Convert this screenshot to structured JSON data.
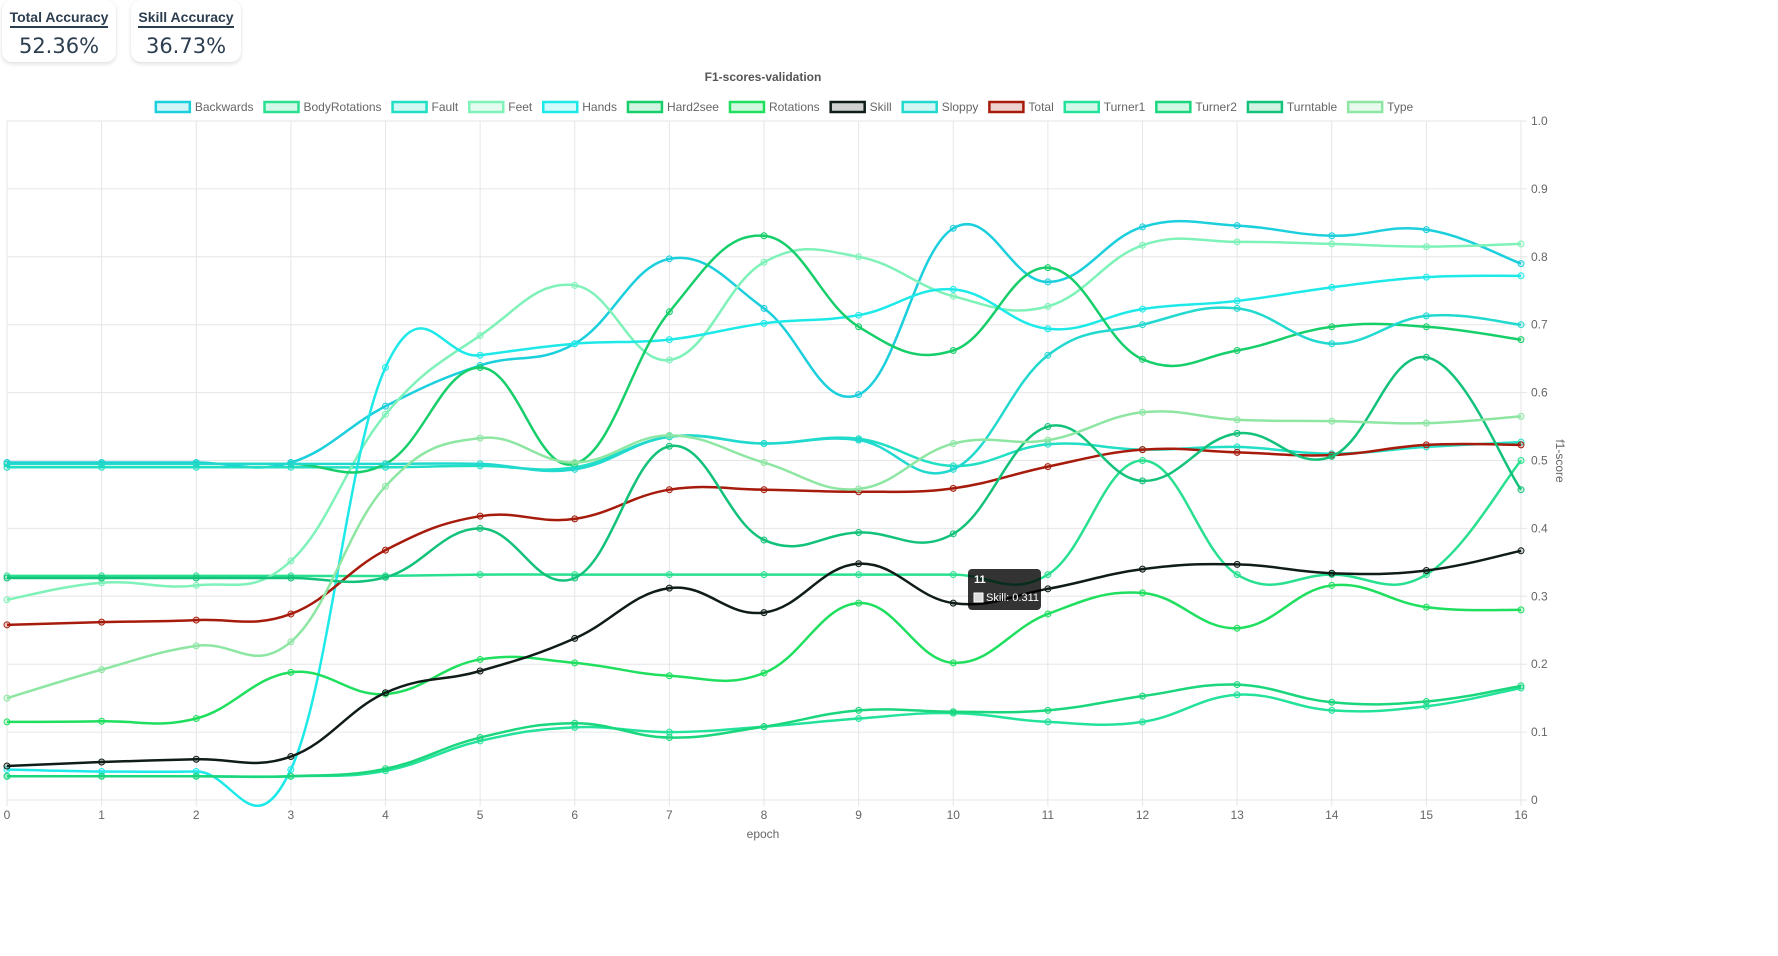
{
  "cards": {
    "total": {
      "label": "Total Accuracy",
      "value": "52.36%"
    },
    "skill": {
      "label": "Skill Accuracy",
      "value": "36.73%"
    }
  },
  "tooltip": {
    "title": "11",
    "series": "Skill",
    "value": "0.311"
  },
  "chart_data": {
    "type": "line",
    "title": "F1-scores-validation",
    "xlabel": "epoch",
    "ylabel": "f1-score",
    "x": [
      0,
      1,
      2,
      3,
      4,
      5,
      6,
      7,
      8,
      9,
      10,
      11,
      12,
      13,
      14,
      15,
      16
    ],
    "xlim": [
      0,
      16
    ],
    "ylim": [
      0,
      1.0
    ],
    "yticks": [
      "0",
      "0.1",
      "0.2",
      "0.3",
      "0.4",
      "0.5",
      "0.6",
      "0.7",
      "0.8",
      "0.9",
      "1.0"
    ],
    "grid": true,
    "legend_position": "top",
    "series": [
      {
        "name": "Backwards",
        "color": "#1ccfdc",
        "values": [
          0.497,
          0.497,
          0.497,
          0.497,
          0.58,
          0.64,
          0.672,
          0.797,
          0.724,
          0.597,
          0.842,
          0.763,
          0.844,
          0.846,
          0.831,
          0.84,
          0.79
        ]
      },
      {
        "name": "BodyRotations",
        "color": "#28e08f",
        "values": [
          0.33,
          0.33,
          0.33,
          0.33,
          0.33,
          0.332,
          0.332,
          0.332,
          0.332,
          0.332,
          0.332,
          0.332,
          0.5,
          0.332,
          0.332,
          0.332,
          0.5
        ]
      },
      {
        "name": "Fault",
        "color": "#20dfc4",
        "values": [
          0.49,
          0.49,
          0.49,
          0.49,
          0.49,
          0.492,
          0.49,
          0.535,
          0.525,
          0.532,
          0.492,
          0.524,
          0.516,
          0.52,
          0.51,
          0.52,
          0.527
        ]
      },
      {
        "name": "Feet",
        "color": "#7ef2b8",
        "values": [
          0.295,
          0.32,
          0.316,
          0.352,
          0.568,
          0.684,
          0.758,
          0.648,
          0.792,
          0.8,
          0.742,
          0.727,
          0.817,
          0.822,
          0.819,
          0.815,
          0.819
        ]
      },
      {
        "name": "Hands",
        "color": "#1ee9e9",
        "values": [
          0.045,
          0.042,
          0.042,
          0.045,
          0.637,
          0.655,
          0.672,
          0.678,
          0.702,
          0.714,
          0.752,
          0.694,
          0.723,
          0.735,
          0.755,
          0.77,
          0.772
        ]
      },
      {
        "name": "Hard2see",
        "color": "#17cf6a",
        "values": [
          0.495,
          0.495,
          0.495,
          0.495,
          0.495,
          0.637,
          0.495,
          0.719,
          0.831,
          0.697,
          0.662,
          0.784,
          0.649,
          0.662,
          0.697,
          0.697,
          0.678
        ]
      },
      {
        "name": "Rotations",
        "color": "#1fdf5e",
        "values": [
          0.115,
          0.116,
          0.12,
          0.188,
          0.156,
          0.207,
          0.202,
          0.183,
          0.187,
          0.29,
          0.202,
          0.274,
          0.305,
          0.253,
          0.316,
          0.284,
          0.28
        ]
      },
      {
        "name": "Skill",
        "color": "#0f1c17",
        "values": [
          0.05,
          0.056,
          0.06,
          0.064,
          0.158,
          0.19,
          0.238,
          0.312,
          0.276,
          0.348,
          0.29,
          0.311,
          0.34,
          0.347,
          0.334,
          0.338,
          0.367
        ]
      },
      {
        "name": "Sloppy",
        "color": "#22d9cf",
        "values": [
          0.495,
          0.495,
          0.495,
          0.495,
          0.495,
          0.495,
          0.487,
          0.535,
          0.525,
          0.53,
          0.487,
          0.655,
          0.7,
          0.724,
          0.672,
          0.713,
          0.7
        ]
      },
      {
        "name": "Total",
        "color": "#a71b0c",
        "values": [
          0.258,
          0.262,
          0.265,
          0.274,
          0.368,
          0.418,
          0.414,
          0.457,
          0.457,
          0.454,
          0.459,
          0.491,
          0.516,
          0.512,
          0.508,
          0.523,
          0.523
        ]
      },
      {
        "name": "Turner1",
        "color": "#23e29a",
        "values": [
          0.035,
          0.035,
          0.035,
          0.035,
          0.043,
          0.087,
          0.107,
          0.1,
          0.108,
          0.12,
          0.128,
          0.115,
          0.115,
          0.155,
          0.132,
          0.138,
          0.165
        ]
      },
      {
        "name": "Turner2",
        "color": "#1ad67c",
        "values": [
          0.035,
          0.035,
          0.035,
          0.035,
          0.046,
          0.092,
          0.113,
          0.092,
          0.108,
          0.132,
          0.13,
          0.132,
          0.153,
          0.17,
          0.144,
          0.145,
          0.168
        ]
      },
      {
        "name": "Turntable",
        "color": "#13c27a",
        "values": [
          0.327,
          0.327,
          0.327,
          0.327,
          0.328,
          0.4,
          0.327,
          0.521,
          0.383,
          0.394,
          0.392,
          0.55,
          0.47,
          0.54,
          0.506,
          0.652,
          0.457
        ]
      },
      {
        "name": "Type",
        "color": "#8ee6a3",
        "values": [
          0.15,
          0.192,
          0.227,
          0.233,
          0.462,
          0.533,
          0.497,
          0.537,
          0.497,
          0.458,
          0.525,
          0.53,
          0.571,
          0.56,
          0.558,
          0.555,
          0.565
        ]
      }
    ]
  }
}
